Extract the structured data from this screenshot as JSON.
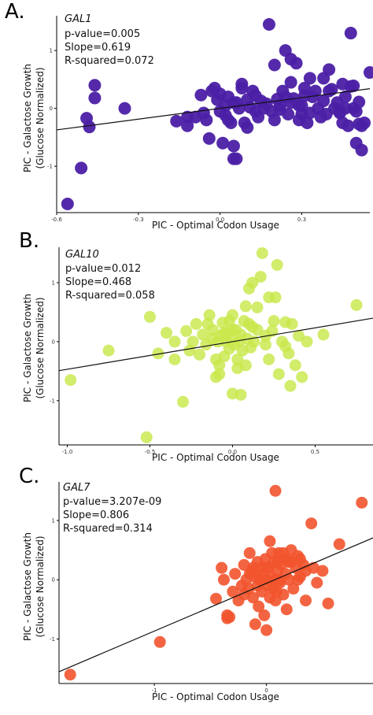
{
  "chart_data": [
    {
      "type": "scatter",
      "panel_label": "A.",
      "gene": "GAL1",
      "stats": [
        "p-value=0.005",
        "Slope=0.619",
        "R-squared=0.072"
      ],
      "xlabel": "PIC - Optimal Codon Usage",
      "ylabel": [
        "PIC - Galactose Growth",
        "(Glucose Normalized)"
      ],
      "xlim": [
        -0.6,
        0.55
      ],
      "ylim": [
        -1.8,
        1.6
      ],
      "xticks": [
        {
          "v": -0.6,
          "label": "-0.6"
        },
        {
          "v": -0.3,
          "label": "-0.3"
        },
        {
          "v": 0,
          "label": "0.0"
        },
        {
          "v": 0.3,
          "label": "0.3"
        }
      ],
      "yticks": [
        {
          "v": -1,
          "label": "-1"
        },
        {
          "v": 0,
          "label": "0"
        },
        {
          "v": 1,
          "label": "1"
        }
      ],
      "color": "#4B1FA5",
      "opacity": 0.95,
      "fit": {
        "slope": 0.619,
        "intercept": 0.0
      },
      "points": [
        [
          -0.56,
          -1.65
        ],
        [
          -0.51,
          -1.03
        ],
        [
          -0.49,
          -0.17
        ],
        [
          -0.48,
          -0.32
        ],
        [
          -0.46,
          0.4
        ],
        [
          -0.46,
          0.18
        ],
        [
          -0.35,
          0.0
        ],
        [
          -0.16,
          -0.22
        ],
        [
          -0.12,
          -0.15
        ],
        [
          -0.12,
          -0.3
        ],
        [
          -0.07,
          0.23
        ],
        [
          -0.09,
          -0.15
        ],
        [
          -0.06,
          -0.08
        ],
        [
          -0.05,
          -0.2
        ],
        [
          -0.04,
          -0.52
        ],
        [
          -0.02,
          0.35
        ],
        [
          -0.01,
          0.15
        ],
        [
          0.0,
          -0.05
        ],
        [
          0.01,
          -0.6
        ],
        [
          0.02,
          0.05
        ],
        [
          0.02,
          -0.12
        ],
        [
          0.03,
          0.2
        ],
        [
          0.04,
          -0.25
        ],
        [
          0.05,
          0.1
        ],
        [
          0.05,
          -0.65
        ],
        [
          0.06,
          -0.87
        ],
        [
          0.05,
          -0.87
        ],
        [
          0.07,
          0.0
        ],
        [
          0.08,
          0.42
        ],
        [
          0.09,
          -0.25
        ],
        [
          0.1,
          0.15
        ],
        [
          0.11,
          0.02
        ],
        [
          0.12,
          0.3
        ],
        [
          0.13,
          -0.05
        ],
        [
          0.14,
          -0.15
        ],
        [
          0.15,
          0.13
        ],
        [
          0.16,
          0.0
        ],
        [
          0.17,
          0.08
        ],
        [
          0.18,
          1.45
        ],
        [
          0.19,
          -0.05
        ],
        [
          0.2,
          -0.2
        ],
        [
          0.21,
          0.16
        ],
        [
          0.22,
          0.05
        ],
        [
          0.23,
          0.3
        ],
        [
          0.24,
          1.0
        ],
        [
          0.25,
          -0.1
        ],
        [
          0.26,
          0.45
        ],
        [
          0.27,
          0.17
        ],
        [
          0.28,
          0.78
        ],
        [
          0.29,
          -0.2
        ],
        [
          0.3,
          -0.1
        ],
        [
          0.3,
          0.05
        ],
        [
          0.31,
          0.22
        ],
        [
          0.32,
          -0.25
        ],
        [
          0.33,
          -0.08
        ],
        [
          0.34,
          0.2
        ],
        [
          0.35,
          0.3
        ],
        [
          0.36,
          0.0
        ],
        [
          0.37,
          -0.15
        ],
        [
          0.38,
          0.13
        ],
        [
          0.39,
          -0.1
        ],
        [
          0.4,
          0.3
        ],
        [
          0.41,
          0.33
        ],
        [
          0.42,
          0.0
        ],
        [
          0.43,
          0.1
        ],
        [
          0.44,
          -0.08
        ],
        [
          0.45,
          -0.25
        ],
        [
          0.46,
          0.2
        ],
        [
          0.47,
          -0.3
        ],
        [
          0.48,
          0.38
        ],
        [
          0.49,
          0.0
        ],
        [
          0.5,
          -0.05
        ],
        [
          0.51,
          0.11
        ],
        [
          0.52,
          -0.3
        ],
        [
          0.45,
          0.42
        ],
        [
          0.4,
          0.67
        ],
        [
          0.38,
          0.52
        ],
        [
          0.33,
          0.52
        ],
        [
          0.31,
          0.35
        ],
        [
          0.29,
          0.05
        ],
        [
          0.26,
          0.1
        ],
        [
          0.22,
          -0.02
        ],
        [
          0.24,
          0.2
        ],
        [
          0.13,
          0.22
        ],
        [
          0.1,
          -0.33
        ],
        [
          0.08,
          0.35
        ],
        [
          0.06,
          0.1
        ],
        [
          0.03,
          -0.2
        ],
        [
          0.0,
          0.25
        ],
        [
          -0.03,
          0.3
        ],
        [
          0.46,
          0.0
        ],
        [
          0.53,
          -0.25
        ],
        [
          0.5,
          -0.6
        ],
        [
          0.52,
          -0.72
        ],
        [
          0.51,
          -0.27
        ],
        [
          0.49,
          0.39
        ],
        [
          0.44,
          -0.05
        ],
        [
          0.2,
          0.75
        ],
        [
          0.26,
          0.85
        ],
        [
          0.48,
          1.3
        ],
        [
          0.55,
          0.62
        ]
      ]
    },
    {
      "type": "scatter",
      "panel_label": "B.",
      "gene": "GAL10",
      "stats": [
        "p-value=0.012",
        "Slope=0.468",
        "R-squared=0.058"
      ],
      "xlabel": "PIC - Optimal Codon Usage",
      "ylabel": [
        "PIC - Galactose Growth",
        "(Glucose Normalized)"
      ],
      "xlim": [
        -1.05,
        0.85
      ],
      "ylim": [
        -1.75,
        1.6
      ],
      "xticks": [
        {
          "v": -1.0,
          "label": "-1.0"
        },
        {
          "v": -0.5,
          "label": "-0.5"
        },
        {
          "v": 0,
          "label": "0.0"
        },
        {
          "v": 0.5,
          "label": "0.5"
        }
      ],
      "yticks": [
        {
          "v": -1,
          "label": "-1"
        },
        {
          "v": 0,
          "label": "0"
        },
        {
          "v": 1,
          "label": "1"
        }
      ],
      "color": "#C8E84A",
      "opacity": 0.82,
      "fit": {
        "slope": 0.468,
        "intercept": 0.0
      },
      "points": [
        [
          -0.98,
          -0.65
        ],
        [
          -0.75,
          -0.15
        ],
        [
          -0.52,
          -1.62
        ],
        [
          -0.5,
          0.42
        ],
        [
          -0.4,
          0.15
        ],
        [
          -0.35,
          -0.3
        ],
        [
          -0.3,
          -1.02
        ],
        [
          -0.28,
          0.18
        ],
        [
          -0.26,
          -0.15
        ],
        [
          -0.24,
          0.0
        ],
        [
          -0.22,
          0.3
        ],
        [
          -0.2,
          -0.22
        ],
        [
          -0.18,
          0.12
        ],
        [
          -0.16,
          -0.05
        ],
        [
          -0.14,
          0.45
        ],
        [
          -0.12,
          0.2
        ],
        [
          -0.1,
          -0.3
        ],
        [
          -0.09,
          0.0
        ],
        [
          -0.08,
          -0.4
        ],
        [
          -0.07,
          0.1
        ],
        [
          -0.06,
          0.32
        ],
        [
          -0.05,
          -0.25
        ],
        [
          -0.04,
          0.0
        ],
        [
          -0.03,
          0.15
        ],
        [
          -0.02,
          -0.12
        ],
        [
          -0.01,
          0.05
        ],
        [
          0.0,
          0.45
        ],
        [
          0.0,
          -0.88
        ],
        [
          0.01,
          -0.05
        ],
        [
          0.02,
          0.2
        ],
        [
          0.03,
          -0.3
        ],
        [
          0.04,
          0.0
        ],
        [
          0.05,
          0.12
        ],
        [
          0.06,
          -0.15
        ],
        [
          0.07,
          0.35
        ],
        [
          0.08,
          -0.4
        ],
        [
          0.09,
          0.05
        ],
        [
          0.1,
          0.9
        ],
        [
          0.11,
          -0.1
        ],
        [
          0.12,
          0.25
        ],
        [
          0.13,
          0.0
        ],
        [
          0.15,
          0.58
        ],
        [
          0.17,
          1.1
        ],
        [
          0.2,
          0.1
        ],
        [
          0.22,
          -0.3
        ],
        [
          0.24,
          0.18
        ],
        [
          0.26,
          0.75
        ],
        [
          0.28,
          -0.55
        ],
        [
          0.3,
          0.0
        ],
        [
          0.32,
          0.33
        ],
        [
          0.34,
          -0.2
        ],
        [
          0.36,
          0.3
        ],
        [
          0.38,
          -0.4
        ],
        [
          0.4,
          0.1
        ],
        [
          0.45,
          0.0
        ],
        [
          0.55,
          0.12
        ],
        [
          0.75,
          0.62
        ],
        [
          0.42,
          -0.6
        ],
        [
          0.35,
          -0.75
        ],
        [
          0.22,
          0.75
        ],
        [
          0.18,
          1.5
        ],
        [
          0.12,
          1.0
        ],
        [
          0.05,
          -0.9
        ],
        [
          -0.1,
          -0.6
        ],
        [
          -0.15,
          0.3
        ],
        [
          -0.35,
          0.0
        ],
        [
          -0.45,
          -0.2
        ],
        [
          0.27,
          1.3
        ],
        [
          0.08,
          0.6
        ],
        [
          -0.02,
          0.35
        ],
        [
          0.15,
          0.2
        ],
        [
          0.2,
          -0.05
        ],
        [
          0.25,
          0.35
        ],
        [
          0.32,
          -0.08
        ],
        [
          -0.05,
          0.15
        ],
        [
          -0.12,
          0.05
        ],
        [
          0.0,
          0.2
        ],
        [
          0.1,
          0.3
        ],
        [
          0.03,
          -0.45
        ],
        [
          -0.08,
          -0.55
        ]
      ]
    },
    {
      "type": "scatter",
      "panel_label": "C.",
      "gene": "GAL7",
      "stats": [
        "p-value=3.207e-09",
        "Slope=0.806",
        "R-squared=0.314"
      ],
      "xlabel": "PIC - Optimal Codon Usage",
      "ylabel": [
        "PIC - Galactose Growth",
        "(Glucose Normalized)"
      ],
      "xlim": [
        -1.85,
        0.95
      ],
      "ylim": [
        -1.75,
        1.65
      ],
      "xticks": [
        {
          "v": -1,
          "label": "-1"
        },
        {
          "v": 0,
          "label": "0"
        }
      ],
      "yticks": [
        {
          "v": -1,
          "label": "-1"
        },
        {
          "v": 0,
          "label": "0"
        },
        {
          "v": 1,
          "label": "1"
        }
      ],
      "color": "#F2542D",
      "opacity": 0.9,
      "fit": {
        "slope": 0.806,
        "intercept": -0.06
      },
      "points": [
        [
          -1.75,
          -1.6
        ],
        [
          -0.95,
          -1.05
        ],
        [
          -0.45,
          -0.32
        ],
        [
          -0.4,
          0.2
        ],
        [
          -0.38,
          0.0
        ],
        [
          -0.35,
          -0.6
        ],
        [
          -0.33,
          -0.63
        ],
        [
          -0.3,
          -0.2
        ],
        [
          -0.28,
          0.1
        ],
        [
          -0.25,
          -0.35
        ],
        [
          -0.22,
          -0.1
        ],
        [
          -0.2,
          0.25
        ],
        [
          -0.18,
          0.0
        ],
        [
          -0.16,
          -0.15
        ],
        [
          -0.15,
          0.45
        ],
        [
          -0.13,
          0.15
        ],
        [
          -0.12,
          -0.3
        ],
        [
          -0.1,
          0.05
        ],
        [
          -0.08,
          0.3
        ],
        [
          -0.07,
          -0.45
        ],
        [
          -0.06,
          0.0
        ],
        [
          -0.05,
          0.2
        ],
        [
          -0.04,
          -0.2
        ],
        [
          -0.03,
          0.1
        ],
        [
          -0.02,
          -0.6
        ],
        [
          -0.01,
          0.35
        ],
        [
          0.0,
          0.0
        ],
        [
          0.0,
          -0.85
        ],
        [
          0.01,
          -0.1
        ],
        [
          0.02,
          0.2
        ],
        [
          0.03,
          -0.3
        ],
        [
          0.04,
          0.05
        ],
        [
          0.05,
          0.45
        ],
        [
          0.06,
          -0.15
        ],
        [
          0.07,
          0.3
        ],
        [
          0.08,
          0.0
        ],
        [
          0.09,
          -0.2
        ],
        [
          0.1,
          0.15
        ],
        [
          0.11,
          0.45
        ],
        [
          0.12,
          -0.05
        ],
        [
          0.13,
          0.25
        ],
        [
          0.15,
          -0.25
        ],
        [
          0.17,
          0.1
        ],
        [
          0.18,
          0.35
        ],
        [
          0.2,
          0.0
        ],
        [
          0.22,
          0.5
        ],
        [
          0.24,
          -0.15
        ],
        [
          0.26,
          0.2
        ],
        [
          0.28,
          0.4
        ],
        [
          0.3,
          0.05
        ],
        [
          0.33,
          0.25
        ],
        [
          0.35,
          -0.35
        ],
        [
          0.4,
          0.95
        ],
        [
          0.42,
          0.2
        ],
        [
          0.45,
          -0.05
        ],
        [
          0.5,
          0.15
        ],
        [
          0.55,
          -0.4
        ],
        [
          0.65,
          0.6
        ],
        [
          0.85,
          1.3
        ],
        [
          0.08,
          1.5
        ],
        [
          -0.1,
          -0.75
        ],
        [
          0.03,
          0.65
        ],
        [
          -0.2,
          -0.25
        ],
        [
          -0.05,
          0.0
        ],
        [
          0.1,
          0.3
        ],
        [
          0.2,
          0.3
        ],
        [
          0.28,
          0.0
        ],
        [
          0.35,
          0.15
        ],
        [
          -0.15,
          0.1
        ],
        [
          0.0,
          0.2
        ],
        [
          0.05,
          -0.05
        ],
        [
          -0.12,
          0.2
        ],
        [
          0.15,
          0.45
        ],
        [
          0.22,
          0.3
        ],
        [
          0.12,
          0.0
        ],
        [
          -0.08,
          -0.1
        ],
        [
          0.18,
          -0.5
        ],
        [
          -0.35,
          -0.65
        ],
        [
          0.08,
          -0.35
        ],
        [
          0.3,
          0.35
        ]
      ]
    }
  ]
}
